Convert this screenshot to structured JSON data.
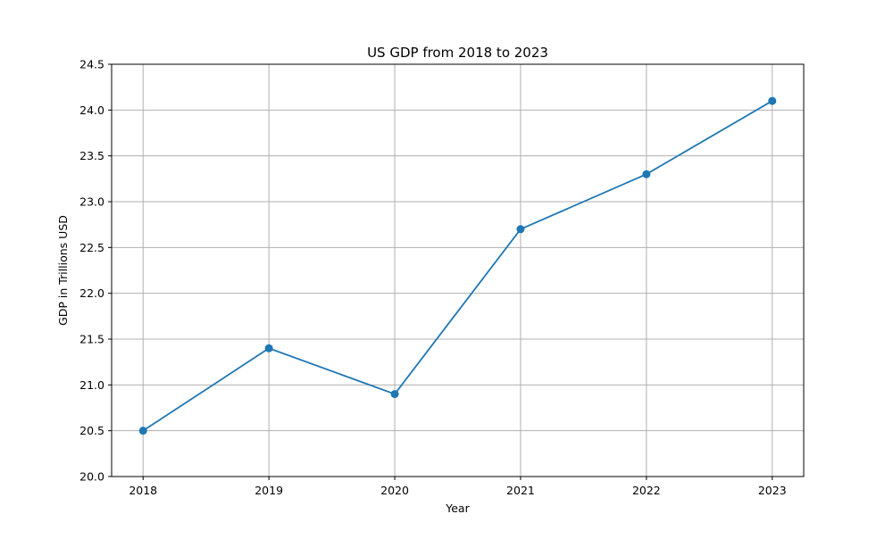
{
  "chart_data": {
    "type": "line",
    "title": "US GDP from 2018 to 2023",
    "xlabel": "Year",
    "ylabel": "GDP in Trillions USD",
    "x": [
      "2018",
      "2019",
      "2020",
      "2021",
      "2022",
      "2023"
    ],
    "series": [
      {
        "values": [
          20.5,
          21.4,
          20.9,
          22.7,
          23.3,
          24.1
        ],
        "color": "#1f77b4",
        "marker": "circle"
      }
    ],
    "xlim": [
      2017.75,
      2023.25
    ],
    "ylim": [
      20.0,
      24.5
    ],
    "x_ticks": [
      "2018",
      "2019",
      "2020",
      "2021",
      "2022",
      "2023"
    ],
    "y_ticks": [
      "20.0",
      "20.5",
      "21.0",
      "21.5",
      "22.0",
      "22.5",
      "23.0",
      "23.5",
      "24.0",
      "24.5"
    ],
    "grid": true,
    "grid_color": "#b0b0b0",
    "legend": false
  }
}
